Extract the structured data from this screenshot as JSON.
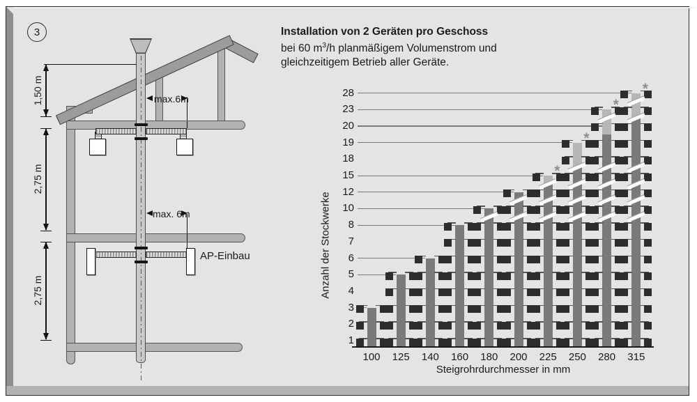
{
  "figure_number": "3",
  "title": {
    "line1": "Installation von 2 Geräten pro Geschoss",
    "line2_pre": "bei 60 m",
    "line2_sup": "3",
    "line2_post": "/h planmäßigem Volumenstrom und",
    "line3": "gleichzeitigem Betrieb aller Geräte."
  },
  "diagram": {
    "dim_roof": "1,50 m",
    "dim_floor_upper": "2,75 m",
    "dim_floor_lower": "2,75 m",
    "max_distance_top": "max.6m",
    "max_distance_bottom": "max. 6m",
    "ap_label": "AP-Einbau"
  },
  "chart_data": {
    "type": "bar",
    "title": "Installation von 2 Geräten pro Geschoss",
    "xlabel": "Steigrohrdurchmesser in mm",
    "ylabel": "Anzahl der Stockwerke",
    "categories": [
      "100",
      "125",
      "140",
      "160",
      "180",
      "200",
      "225",
      "250",
      "280",
      "315"
    ],
    "values": [
      3,
      5,
      6,
      8,
      10,
      12,
      15,
      19,
      23,
      28
    ],
    "light_segment_above": [
      null,
      null,
      null,
      null,
      null,
      null,
      12,
      15,
      19,
      20
    ],
    "asterisk": [
      false,
      false,
      false,
      false,
      false,
      false,
      true,
      true,
      true,
      true
    ],
    "y_rows": [
      1,
      2,
      3,
      4,
      5,
      6,
      7,
      8,
      10,
      12,
      15,
      18,
      19,
      20,
      23,
      28
    ],
    "gridline_rows": [
      3,
      5,
      6,
      8,
      10,
      12,
      15,
      19,
      20,
      23,
      28
    ],
    "break_gaps": [
      [
        8,
        10
      ],
      [
        10,
        12
      ],
      [
        12,
        15
      ],
      [
        15,
        18
      ],
      [
        20,
        23
      ],
      [
        23,
        28
      ]
    ],
    "devices_per_floor": 2,
    "note_marker": "*",
    "ylim": [
      0,
      28
    ],
    "grid": "partial",
    "legend": "none",
    "colors": {
      "bar_dark": "#7a7a7a",
      "bar_light": "#b7b7b7",
      "device_square": "#2d2d2d",
      "gridline": "#7a7a7a",
      "axis": "#1a1a1a",
      "panel_bg": "#e4e4e4",
      "marker": "#8f8f8f"
    }
  }
}
